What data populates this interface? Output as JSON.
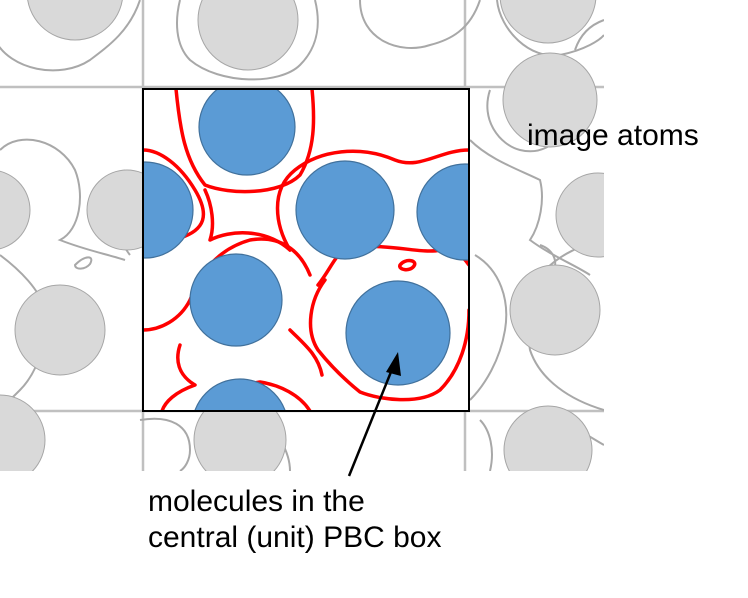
{
  "labels": {
    "image_atoms": "image atoms",
    "molecules_line1": "molecules in the",
    "molecules_line2": "central (unit) PBC box"
  },
  "colors": {
    "molecule_fill": "#5b9bd5",
    "molecule_stroke": "#41719c",
    "central_contour": "#ff0000",
    "image_fill": "#d9d9d9",
    "image_contour": "#a6a6a6",
    "box_border": "#000000",
    "tile_border": "#bfbfbf"
  },
  "icons": {
    "pointer": "arrow-icon"
  }
}
